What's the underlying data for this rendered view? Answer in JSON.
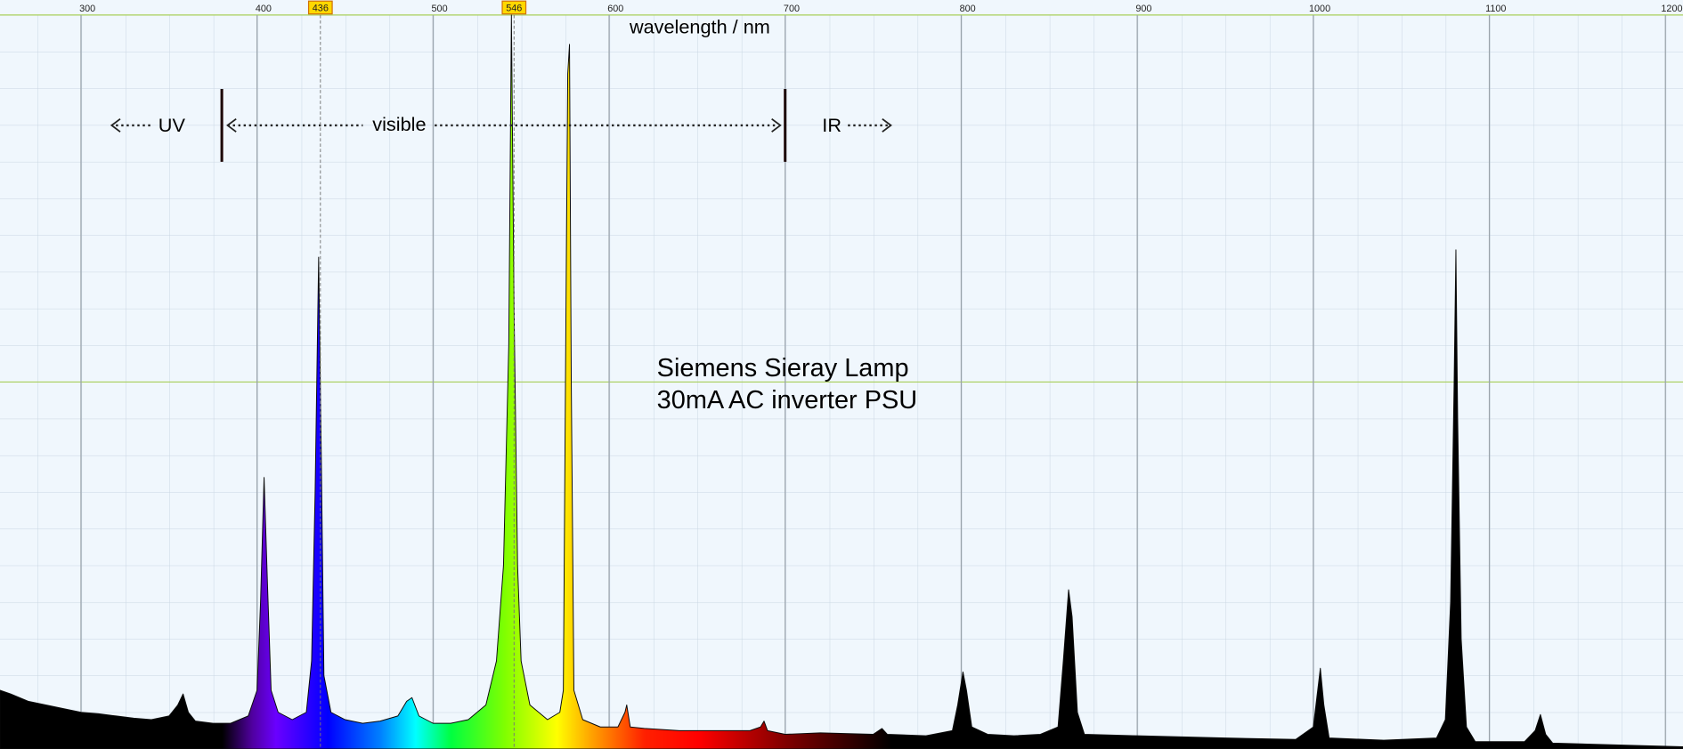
{
  "chart_data": {
    "type": "area",
    "xlabel": "wavelength / nm",
    "x": [
      254,
      260,
      270,
      280,
      290,
      300,
      310,
      320,
      330,
      340,
      350,
      355,
      358,
      361,
      365,
      375,
      385,
      395,
      400,
      402,
      404,
      406,
      408,
      412,
      420,
      428,
      431,
      433,
      435,
      436.5,
      438,
      442,
      450,
      460,
      470,
      480,
      485,
      488,
      492,
      500,
      510,
      520,
      530,
      536,
      540,
      543,
      544.5,
      546,
      548,
      550,
      555,
      565,
      572,
      574,
      575.5,
      576.5,
      577.5,
      578.5,
      580,
      585,
      595,
      605,
      609,
      610,
      612,
      620,
      640,
      660,
      680,
      686,
      688,
      690,
      700,
      720,
      750,
      755,
      758,
      780,
      795,
      798,
      801,
      803,
      806,
      815,
      830,
      845,
      855,
      858,
      861,
      863,
      866,
      870,
      900,
      950,
      990,
      1000,
      1002,
      1004,
      1006,
      1009,
      1040,
      1070,
      1075,
      1078,
      1080,
      1081,
      1082,
      1084,
      1087,
      1092,
      1120,
      1126,
      1129,
      1132,
      1136,
      1180,
      1210
    ],
    "values": [
      8,
      7.5,
      6.5,
      6,
      5.5,
      5,
      4.8,
      4.5,
      4.2,
      4,
      4.5,
      6,
      7.5,
      5,
      3.8,
      3.5,
      3.5,
      4.5,
      8,
      20,
      37,
      22,
      8,
      5,
      4,
      5,
      12,
      35,
      67,
      40,
      10,
      5,
      4,
      3.5,
      3.8,
      4.5,
      6.5,
      7,
      4.5,
      3.5,
      3.5,
      4,
      6,
      12,
      25,
      55,
      100,
      60,
      25,
      12,
      6,
      4,
      5,
      8,
      60,
      92,
      96,
      50,
      8,
      4,
      3,
      3,
      5,
      6,
      3,
      2.8,
      2.5,
      2.5,
      2.5,
      3,
      3.8,
      2.5,
      2,
      2.2,
      2,
      2.8,
      2,
      1.8,
      2.5,
      6,
      10.5,
      8,
      3,
      2,
      1.8,
      2,
      3,
      12,
      21.7,
      18,
      5,
      2,
      1.8,
      1.5,
      1.3,
      3,
      7,
      11,
      6,
      1.5,
      1.2,
      1.5,
      4,
      20,
      50,
      68,
      45,
      15,
      3,
      1,
      1,
      2.5,
      4.7,
      2,
      0.8,
      0.5,
      0.3
    ],
    "xlim": [
      254,
      1210
    ],
    "ylim": [
      0,
      100
    ],
    "xticks": [
      300,
      400,
      500,
      600,
      700,
      800,
      900,
      1000,
      1100,
      1200
    ],
    "markers": [
      436,
      546
    ],
    "regions": {
      "bounds": [
        380,
        700
      ],
      "labels": [
        "UV",
        "visible",
        "IR"
      ]
    },
    "annotations": [
      "Siemens Sieray Lamp",
      "30mA AC inverter PSU"
    ],
    "grid": true
  }
}
